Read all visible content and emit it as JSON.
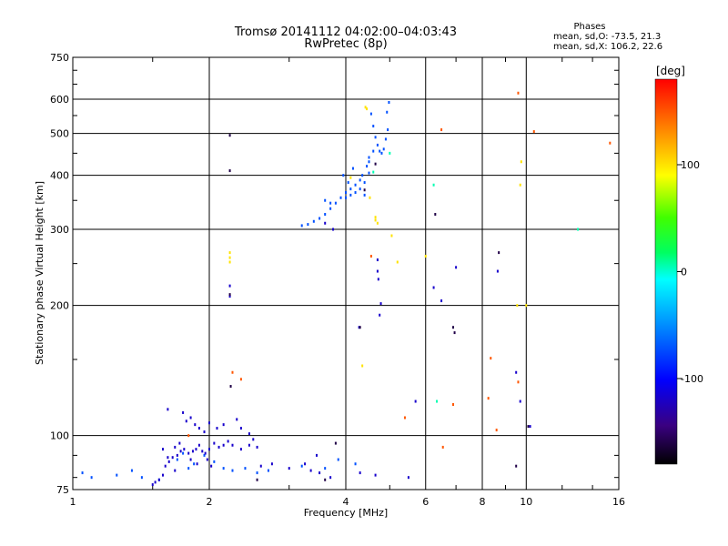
{
  "chart_data": {
    "type": "scatter",
    "title": "Tromsø 20141112 04:02:00–04:03:43",
    "subtitle": "RwPretec (8p)",
    "xlabel": "Frequency [MHz]",
    "ylabel": "Stationary phase Virtual Height [km]",
    "x_scale": "log",
    "y_scale": "log",
    "xlim": [
      1,
      16
    ],
    "ylim": [
      75,
      750
    ],
    "x_ticks": [
      1,
      2,
      4,
      6,
      8,
      10,
      16
    ],
    "x_tick_labels": [
      "1",
      "2",
      "4",
      "6",
      "8",
      "10",
      "16"
    ],
    "y_ticks": [
      75,
      100,
      200,
      300,
      400,
      500,
      600,
      750
    ],
    "y_tick_labels": [
      "75",
      "100",
      "200",
      "300",
      "400",
      "500",
      "600",
      "750"
    ],
    "x_gridlines": [
      2,
      4,
      6,
      8,
      10
    ],
    "y_gridlines": [
      100,
      200,
      300,
      400,
      500,
      600
    ],
    "grid": true,
    "phases_info": {
      "title": "Phases",
      "line_o": "mean, sd,O: -73.5, 21.3",
      "line_x": "mean, sd,X: 106.2, 22.6"
    },
    "colorbar": {
      "label": "[deg]",
      "range": [
        -180,
        180
      ],
      "ticks": [
        100,
        0,
        -100
      ],
      "tick_labels": [
        "100",
        "0",
        "-100"
      ]
    },
    "series": [
      {
        "color_value": -72,
        "points": [
          [
            4.55,
            555
          ],
          [
            4.6,
            520
          ],
          [
            4.65,
            490
          ],
          [
            4.7,
            470
          ],
          [
            4.75,
            455
          ],
          [
            4.8,
            450
          ],
          [
            4.85,
            460
          ],
          [
            4.9,
            485
          ],
          [
            4.95,
            510
          ],
          [
            4.93,
            560
          ],
          [
            4.98,
            590
          ],
          [
            4.5,
            440
          ],
          [
            4.6,
            455
          ],
          [
            4.45,
            420
          ],
          [
            4.35,
            400
          ],
          [
            4.3,
            390
          ],
          [
            4.2,
            380
          ],
          [
            4.1,
            372
          ],
          [
            4.0,
            365
          ],
          [
            3.9,
            355
          ],
          [
            3.8,
            345
          ],
          [
            3.7,
            335
          ],
          [
            3.6,
            325
          ],
          [
            3.5,
            318
          ],
          [
            3.4,
            313
          ],
          [
            3.3,
            308
          ],
          [
            3.2,
            306
          ],
          [
            4.0,
            355
          ],
          [
            4.1,
            360
          ],
          [
            4.2,
            365
          ],
          [
            4.3,
            372
          ],
          [
            4.4,
            385
          ],
          [
            4.5,
            405
          ],
          [
            4.05,
            385
          ],
          [
            3.95,
            400
          ],
          [
            4.15,
            415
          ],
          [
            3.6,
            350
          ],
          [
            3.7,
            345
          ],
          [
            4.4,
            360
          ],
          [
            4.5,
            430
          ],
          [
            1.05,
            82
          ],
          [
            1.1,
            80
          ],
          [
            1.25,
            81
          ],
          [
            1.35,
            83
          ],
          [
            1.42,
            80
          ],
          [
            1.55,
            79
          ],
          [
            1.7,
            88
          ],
          [
            1.75,
            91
          ],
          [
            1.8,
            84
          ],
          [
            1.85,
            86
          ],
          [
            1.95,
            90
          ],
          [
            2.05,
            87
          ],
          [
            2.15,
            84
          ],
          [
            2.25,
            83
          ],
          [
            2.4,
            84
          ],
          [
            2.55,
            82
          ],
          [
            2.7,
            83
          ],
          [
            3.2,
            85
          ],
          [
            3.6,
            84
          ],
          [
            3.85,
            88
          ],
          [
            4.2,
            86
          ]
        ]
      },
      {
        "color_value": -118,
        "points": [
          [
            1.5,
            77
          ],
          [
            1.52,
            78
          ],
          [
            1.55,
            79
          ],
          [
            1.58,
            81
          ],
          [
            1.6,
            85
          ],
          [
            1.63,
            87
          ],
          [
            1.66,
            89
          ],
          [
            1.7,
            90
          ],
          [
            1.73,
            92
          ],
          [
            1.76,
            93
          ],
          [
            1.8,
            91
          ],
          [
            1.84,
            92
          ],
          [
            1.87,
            93
          ],
          [
            1.9,
            95
          ],
          [
            1.93,
            92
          ],
          [
            1.96,
            91
          ],
          [
            2.0,
            93
          ],
          [
            2.05,
            96
          ],
          [
            2.1,
            94
          ],
          [
            2.15,
            95
          ],
          [
            2.2,
            97
          ],
          [
            2.25,
            95
          ],
          [
            2.35,
            93
          ],
          [
            2.45,
            95
          ],
          [
            2.55,
            94
          ],
          [
            1.62,
            89
          ],
          [
            1.68,
            94
          ],
          [
            1.72,
            96
          ],
          [
            1.82,
            88
          ],
          [
            1.88,
            86
          ],
          [
            1.98,
            88
          ],
          [
            2.02,
            85
          ],
          [
            1.75,
            113
          ],
          [
            1.78,
            108
          ],
          [
            1.82,
            110
          ],
          [
            1.86,
            106
          ],
          [
            1.9,
            104
          ],
          [
            1.95,
            102
          ],
          [
            2.0,
            107
          ],
          [
            2.08,
            104
          ],
          [
            2.15,
            106
          ],
          [
            2.3,
            109
          ],
          [
            2.35,
            104
          ],
          [
            2.45,
            101
          ],
          [
            2.5,
            98
          ],
          [
            2.6,
            85
          ],
          [
            2.75,
            86
          ],
          [
            3.0,
            84
          ],
          [
            3.25,
            86
          ],
          [
            3.35,
            83
          ],
          [
            3.5,
            82
          ],
          [
            3.45,
            90
          ],
          [
            3.7,
            80
          ],
          [
            4.3,
            82
          ],
          [
            4.65,
            81
          ],
          [
            3.75,
            300
          ],
          [
            3.6,
            310
          ],
          [
            4.7,
            255
          ],
          [
            4.7,
            240
          ],
          [
            4.72,
            230
          ],
          [
            4.78,
            202
          ],
          [
            4.75,
            190
          ],
          [
            5.5,
            80
          ],
          [
            6.25,
            220
          ],
          [
            6.5,
            205
          ],
          [
            7.0,
            245
          ],
          [
            8.65,
            240
          ],
          [
            9.5,
            140
          ],
          [
            9.7,
            120
          ],
          [
            10.2,
            105
          ],
          [
            1.62,
            115
          ],
          [
            1.58,
            93
          ],
          [
            1.68,
            83
          ],
          [
            2.22,
            222
          ],
          [
            2.22,
            210
          ],
          [
            4.28,
            178
          ],
          [
            5.7,
            120
          ]
        ]
      },
      {
        "color_value": -160,
        "points": [
          [
            2.22,
            495
          ],
          [
            2.22,
            410
          ],
          [
            2.22,
            212
          ],
          [
            2.23,
            130
          ],
          [
            3.8,
            96
          ],
          [
            4.3,
            178
          ],
          [
            4.4,
            370
          ],
          [
            4.65,
            425
          ],
          [
            6.3,
            325
          ],
          [
            6.9,
            178
          ],
          [
            6.95,
            173
          ],
          [
            8.7,
            265
          ],
          [
            9.5,
            85
          ],
          [
            10.1,
            105
          ],
          [
            2.55,
            79
          ],
          [
            3.6,
            79
          ]
        ]
      },
      {
        "color_value": 5,
        "points": [
          [
            4.6,
            407
          ],
          [
            5.0,
            450
          ],
          [
            6.35,
            120
          ],
          [
            13.0,
            300
          ],
          [
            6.25,
            380
          ]
        ]
      },
      {
        "color_value": 100,
        "points": [
          [
            4.1,
            395
          ],
          [
            4.35,
            145
          ],
          [
            4.65,
            320
          ],
          [
            4.65,
            315
          ],
          [
            4.7,
            310
          ],
          [
            4.42,
            575
          ],
          [
            4.52,
            355
          ],
          [
            5.05,
            290
          ],
          [
            5.2,
            252
          ],
          [
            2.22,
            265
          ],
          [
            2.22,
            258
          ],
          [
            2.22,
            252
          ],
          [
            4.45,
            570
          ],
          [
            6.0,
            260
          ],
          [
            9.55,
            200
          ],
          [
            9.7,
            380
          ],
          [
            9.75,
            430
          ],
          [
            10.0,
            200
          ]
        ]
      },
      {
        "color_value": 150,
        "points": [
          [
            2.25,
            140
          ],
          [
            2.35,
            135
          ],
          [
            4.55,
            260
          ],
          [
            5.4,
            110
          ],
          [
            6.5,
            510
          ],
          [
            6.55,
            94
          ],
          [
            6.9,
            118
          ],
          [
            8.25,
            122
          ],
          [
            8.35,
            151
          ],
          [
            9.6,
            620
          ],
          [
            10.4,
            505
          ],
          [
            15.3,
            475
          ],
          [
            9.6,
            133
          ],
          [
            8.6,
            103
          ],
          [
            1.8,
            100
          ]
        ]
      }
    ]
  }
}
